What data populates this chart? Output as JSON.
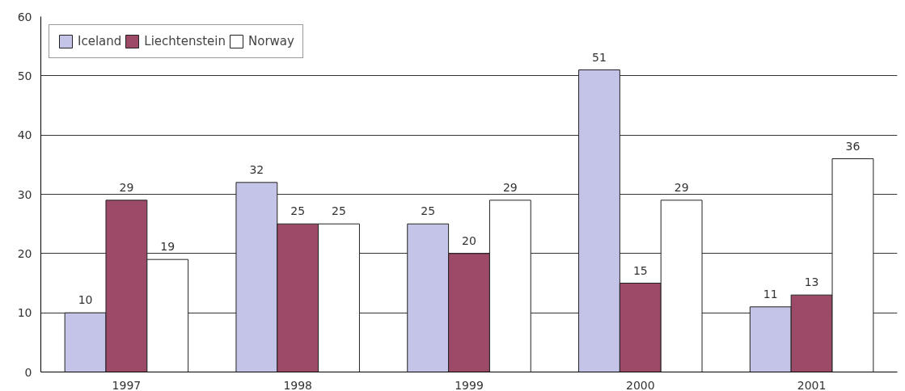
{
  "chart_data": {
    "type": "bar",
    "categories": [
      "1997",
      "1998",
      "1999",
      "2000",
      "2001"
    ],
    "series": [
      {
        "name": "Iceland",
        "color": "#c4c4e8",
        "values": [
          10,
          32,
          25,
          51,
          11
        ]
      },
      {
        "name": "Liechtenstein",
        "color": "#9c4a68",
        "values": [
          29,
          25,
          20,
          15,
          13
        ]
      },
      {
        "name": "Norway",
        "color": "#ffffff",
        "values": [
          19,
          25,
          29,
          29,
          36
        ]
      }
    ],
    "ylim": [
      0,
      60
    ],
    "yticks": [
      0,
      10,
      20,
      30,
      40,
      50,
      60
    ],
    "grid": "y",
    "legend": "top left",
    "data_labels": true
  }
}
